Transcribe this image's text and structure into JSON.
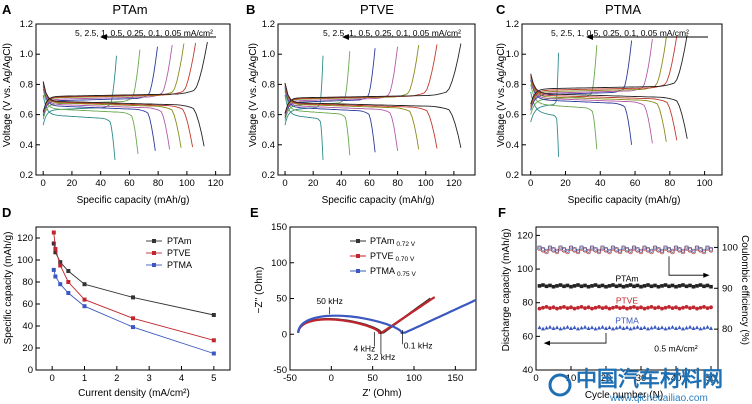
{
  "chart_data": [
    {
      "panel": "A",
      "type": "line",
      "title": "PTAm",
      "xlabel": "Specific capacity (mAh/g)",
      "ylabel": "Voltage (V vs. Ag/AgCl)",
      "xlim": [
        -5,
        130
      ],
      "ylim": [
        0.2,
        1.2
      ],
      "xticks": [
        0,
        20,
        40,
        60,
        80,
        100,
        120
      ],
      "yticks": [
        0.2,
        0.4,
        0.6,
        0.8,
        1.0,
        1.2
      ],
      "annotation": "5, 2.5, 1, 0.5, 0.25, 0.1, 0.05 mA/cm²",
      "series": [
        {
          "name": "5 mA/cm²",
          "color": "#2e8b8b",
          "discharge_capacity": 50
        },
        {
          "name": "2.5 mA/cm²",
          "color": "#6aa84f",
          "discharge_capacity": 66
        },
        {
          "name": "1 mA/cm²",
          "color": "#2b3a9a",
          "discharge_capacity": 78
        },
        {
          "name": "0.5 mA/cm²",
          "color": "#b35aa8",
          "discharge_capacity": 88
        },
        {
          "name": "0.25 mA/cm²",
          "color": "#8a8a1a",
          "discharge_capacity": 96
        },
        {
          "name": "0.1 mA/cm²",
          "color": "#c0392b",
          "discharge_capacity": 104
        },
        {
          "name": "0.05 mA/cm²",
          "color": "#222222",
          "discharge_capacity": 112
        }
      ]
    },
    {
      "panel": "B",
      "type": "line",
      "title": "PTVE",
      "xlabel": "Specific capacity (mAh/g)",
      "ylabel": "Voltage (V vs. Ag/AgCl)",
      "xlim": [
        -5,
        135
      ],
      "ylim": [
        0.2,
        1.2
      ],
      "xticks": [
        0,
        20,
        40,
        60,
        80,
        100,
        120
      ],
      "yticks": [
        0.2,
        0.4,
        0.6,
        0.8,
        1.0,
        1.2
      ],
      "annotation": "5, 2.5, 1, 0.5, 0.25, 0.1, 0.05 mA/cm²",
      "series": [
        {
          "name": "5 mA/cm²",
          "color": "#2e8b8b",
          "discharge_capacity": 27
        },
        {
          "name": "2.5 mA/cm²",
          "color": "#6aa84f",
          "discharge_capacity": 46
        },
        {
          "name": "1 mA/cm²",
          "color": "#2b3a9a",
          "discharge_capacity": 64
        },
        {
          "name": "0.5 mA/cm²",
          "color": "#b35aa8",
          "discharge_capacity": 80
        },
        {
          "name": "0.25 mA/cm²",
          "color": "#8a8a1a",
          "discharge_capacity": 95
        },
        {
          "name": "0.1 mA/cm²",
          "color": "#c0392b",
          "discharge_capacity": 108
        },
        {
          "name": "0.05 mA/cm²",
          "color": "#222222",
          "discharge_capacity": 125
        }
      ]
    },
    {
      "panel": "C",
      "type": "line",
      "title": "PTMA",
      "xlabel": "Specific capacity (mAh/g)",
      "ylabel": "Voltage (V vs. Ag/AgCl)",
      "xlim": [
        -5,
        110
      ],
      "ylim": [
        0.2,
        1.2
      ],
      "xticks": [
        0,
        20,
        40,
        60,
        80,
        100
      ],
      "yticks": [
        0.2,
        0.4,
        0.6,
        0.8,
        1.0,
        1.2
      ],
      "annotation": "5, 2.5, 1, 0.5, 0.25, 0.1, 0.05 mA/cm²",
      "series": [
        {
          "name": "5 mA/cm²",
          "color": "#2e8b8b",
          "discharge_capacity": 16
        },
        {
          "name": "2.5 mA/cm²",
          "color": "#6aa84f",
          "discharge_capacity": 38
        },
        {
          "name": "1 mA/cm²",
          "color": "#2b3a9a",
          "discharge_capacity": 58
        },
        {
          "name": "0.5 mA/cm²",
          "color": "#b35aa8",
          "discharge_capacity": 70
        },
        {
          "name": "0.25 mA/cm²",
          "color": "#8a8a1a",
          "discharge_capacity": 78
        },
        {
          "name": "0.1 mA/cm²",
          "color": "#c0392b",
          "discharge_capacity": 84
        },
        {
          "name": "0.05 mA/cm²",
          "color": "#222222",
          "discharge_capacity": 90
        }
      ]
    },
    {
      "panel": "D",
      "type": "line",
      "xlabel": "Current density (mA/cm²)",
      "ylabel": "Specific capacity (mAh/g)",
      "xlim": [
        -0.5,
        5.5
      ],
      "ylim": [
        0,
        130
      ],
      "xticks": [
        0,
        1,
        2,
        3,
        4,
        5
      ],
      "yticks": [
        0,
        20,
        40,
        60,
        80,
        100,
        120
      ],
      "x": [
        0.05,
        0.1,
        0.25,
        0.5,
        1,
        2.5,
        5
      ],
      "series": [
        {
          "name": "PTAm",
          "color": "#333333",
          "values": [
            115,
            107,
            98,
            90,
            78,
            66,
            50
          ]
        },
        {
          "name": "PTVE",
          "color": "#c0262d",
          "values": [
            125,
            110,
            95,
            80,
            64,
            47,
            27
          ]
        },
        {
          "name": "PTMA",
          "color": "#3a58c0",
          "values": [
            91,
            85,
            78,
            70,
            58,
            39,
            15
          ]
        }
      ]
    },
    {
      "panel": "E",
      "type": "scatter",
      "xlabel": "Z' (Ohm)",
      "ylabel": "−Z'' (Ohm)",
      "xlim": [
        -50,
        175
      ],
      "ylim": [
        -50,
        150
      ],
      "xticks": [
        -50,
        0,
        50,
        100,
        150
      ],
      "yticks": [
        -50,
        0,
        50,
        100,
        150
      ],
      "legend": [
        {
          "name": "PTAm",
          "sub": "0.72 V",
          "color": "#333333"
        },
        {
          "name": "PTVE",
          "sub": "0.70 V",
          "color": "#c0262d"
        },
        {
          "name": "PTMA",
          "sub": "0.75 V",
          "color": "#3a58c0"
        }
      ],
      "annotations": [
        "50 kHz",
        "4 kHz",
        "3.2 kHz",
        "0.1 kHz"
      ]
    },
    {
      "panel": "F",
      "type": "scatter",
      "xlabel": "Cycle number (N)",
      "ylabel": "Discharge capacity (mAh/g)",
      "ylabel_right": "Coulombic efficiency (%)",
      "xlim": [
        0,
        52
      ],
      "ylim": [
        40,
        125
      ],
      "ylim_right": [
        70,
        105
      ],
      "xticks": [
        0,
        10,
        20,
        30,
        40,
        50
      ],
      "yticks": [
        40,
        60,
        80,
        100,
        120
      ],
      "yticks_right": [
        80,
        90,
        100
      ],
      "series": [
        {
          "name": "PTAm",
          "color": "#222222",
          "capacity": 90
        },
        {
          "name": "PTVE",
          "color": "#c0262d",
          "capacity": 77
        },
        {
          "name": "PTMA",
          "color": "#3a58c0",
          "capacity": 65
        }
      ],
      "efficiency_percent": 99.5,
      "labels": {
        "ptam": "PTAm",
        "ptve": "PTVE",
        "ptma": "PTMA",
        "current": "0.5 mA/cm²"
      }
    }
  ],
  "watermark": {
    "line1": "中国汽车材料网",
    "line2": "www.qichecailiao.com"
  }
}
